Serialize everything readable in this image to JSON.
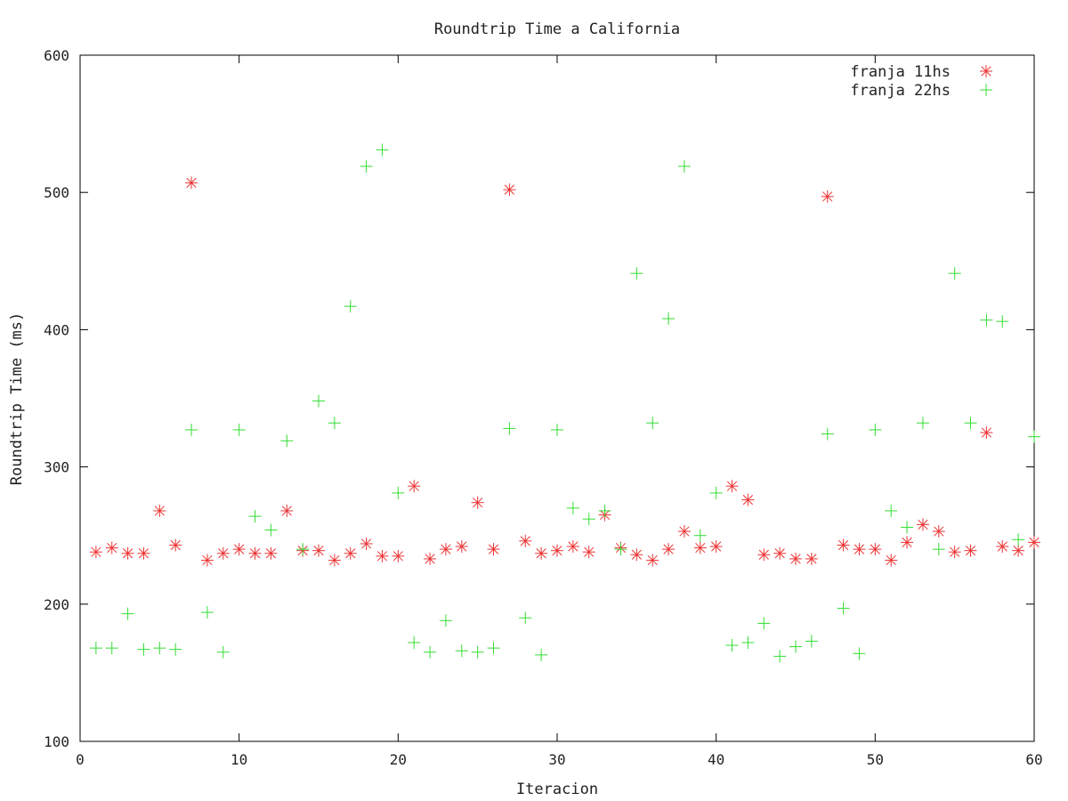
{
  "chart_data": {
    "type": "scatter",
    "title": "Roundtrip Time a California",
    "xlabel": "Iteracion",
    "ylabel": "Roundtrip Time (ms)",
    "xlim": [
      0,
      60
    ],
    "ylim": [
      100,
      600
    ],
    "xticks": [
      0,
      10,
      20,
      30,
      40,
      50,
      60
    ],
    "yticks": [
      100,
      200,
      300,
      400,
      500,
      600
    ],
    "grid": false,
    "legend_position": "top-right",
    "series": [
      {
        "name": "franja 11hs",
        "color": "#ee3333",
        "marker": "asterisk",
        "x": [
          1,
          2,
          3,
          4,
          5,
          6,
          7,
          8,
          9,
          10,
          11,
          12,
          13,
          14,
          15,
          16,
          17,
          18,
          19,
          20,
          21,
          22,
          23,
          24,
          25,
          26,
          27,
          28,
          29,
          30,
          31,
          32,
          33,
          34,
          35,
          36,
          37,
          38,
          39,
          40,
          41,
          42,
          43,
          44,
          45,
          46,
          47,
          48,
          49,
          50,
          51,
          52,
          53,
          54,
          55,
          56,
          57,
          58,
          59,
          60
        ],
        "y": [
          238,
          241,
          237,
          237,
          268,
          243,
          507,
          232,
          237,
          240,
          237,
          237,
          268,
          239,
          239,
          232,
          237,
          244,
          235,
          235,
          286,
          233,
          240,
          242,
          274,
          240,
          502,
          246,
          237,
          239,
          242,
          238,
          265,
          241,
          236,
          232,
          240,
          253,
          241,
          242,
          286,
          276,
          236,
          237,
          233,
          233,
          497,
          243,
          240,
          240,
          232,
          245,
          258,
          253,
          238,
          239,
          325,
          242,
          239,
          245
        ]
      },
      {
        "name": "franja 22hs",
        "color": "#33dd33",
        "marker": "plus",
        "x": [
          1,
          2,
          3,
          4,
          5,
          6,
          7,
          8,
          9,
          10,
          11,
          12,
          13,
          14,
          15,
          16,
          17,
          18,
          19,
          20,
          21,
          22,
          23,
          24,
          25,
          26,
          27,
          28,
          29,
          30,
          31,
          32,
          33,
          34,
          35,
          36,
          37,
          38,
          39,
          40,
          41,
          42,
          43,
          44,
          45,
          46,
          47,
          48,
          49,
          50,
          51,
          52,
          53,
          54,
          55,
          56,
          57,
          58,
          59,
          60
        ],
        "y": [
          168,
          168,
          193,
          167,
          168,
          167,
          327,
          194,
          165,
          327,
          264,
          254,
          319,
          240,
          348,
          332,
          417,
          519,
          531,
          281,
          172,
          165,
          188,
          166,
          165,
          168,
          328,
          190,
          163,
          327,
          270,
          262,
          268,
          240,
          441,
          332,
          408,
          519,
          250,
          281,
          170,
          172,
          186,
          162,
          169,
          173,
          324,
          197,
          164,
          327,
          268,
          256,
          332,
          240,
          441,
          332,
          407,
          406,
          247,
          322
        ]
      }
    ]
  }
}
